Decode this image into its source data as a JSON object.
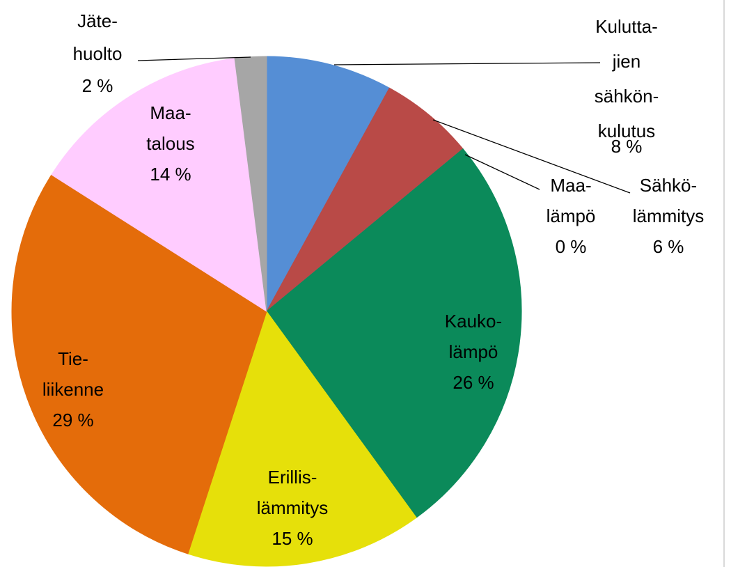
{
  "chart_data": {
    "type": "pie",
    "categories": [
      "Kulutta-\njien\nsähkön-\nkulutus",
      "Sähkö-\nlämmitys",
      "Maa-\nlämpö",
      "Kauko-\nlämpö",
      "Erillis-\nlämmitys",
      "Tie-\nliikenne",
      "Maa-\ntalous",
      "Jäte-\nhuolto"
    ],
    "values": [
      8,
      6,
      0,
      26,
      15,
      29,
      14,
      2
    ],
    "value_labels": [
      "8 %",
      "6 %",
      "0 %",
      "26 %",
      "15 %",
      "29 %",
      "14 %",
      "2 %"
    ],
    "colors": [
      "#558ed5",
      "#b94a47",
      "#7f6a9e",
      "#0b8a5a",
      "#e6e00a",
      "#e46c0a",
      "#ffccff",
      "#a6a6a6"
    ]
  }
}
